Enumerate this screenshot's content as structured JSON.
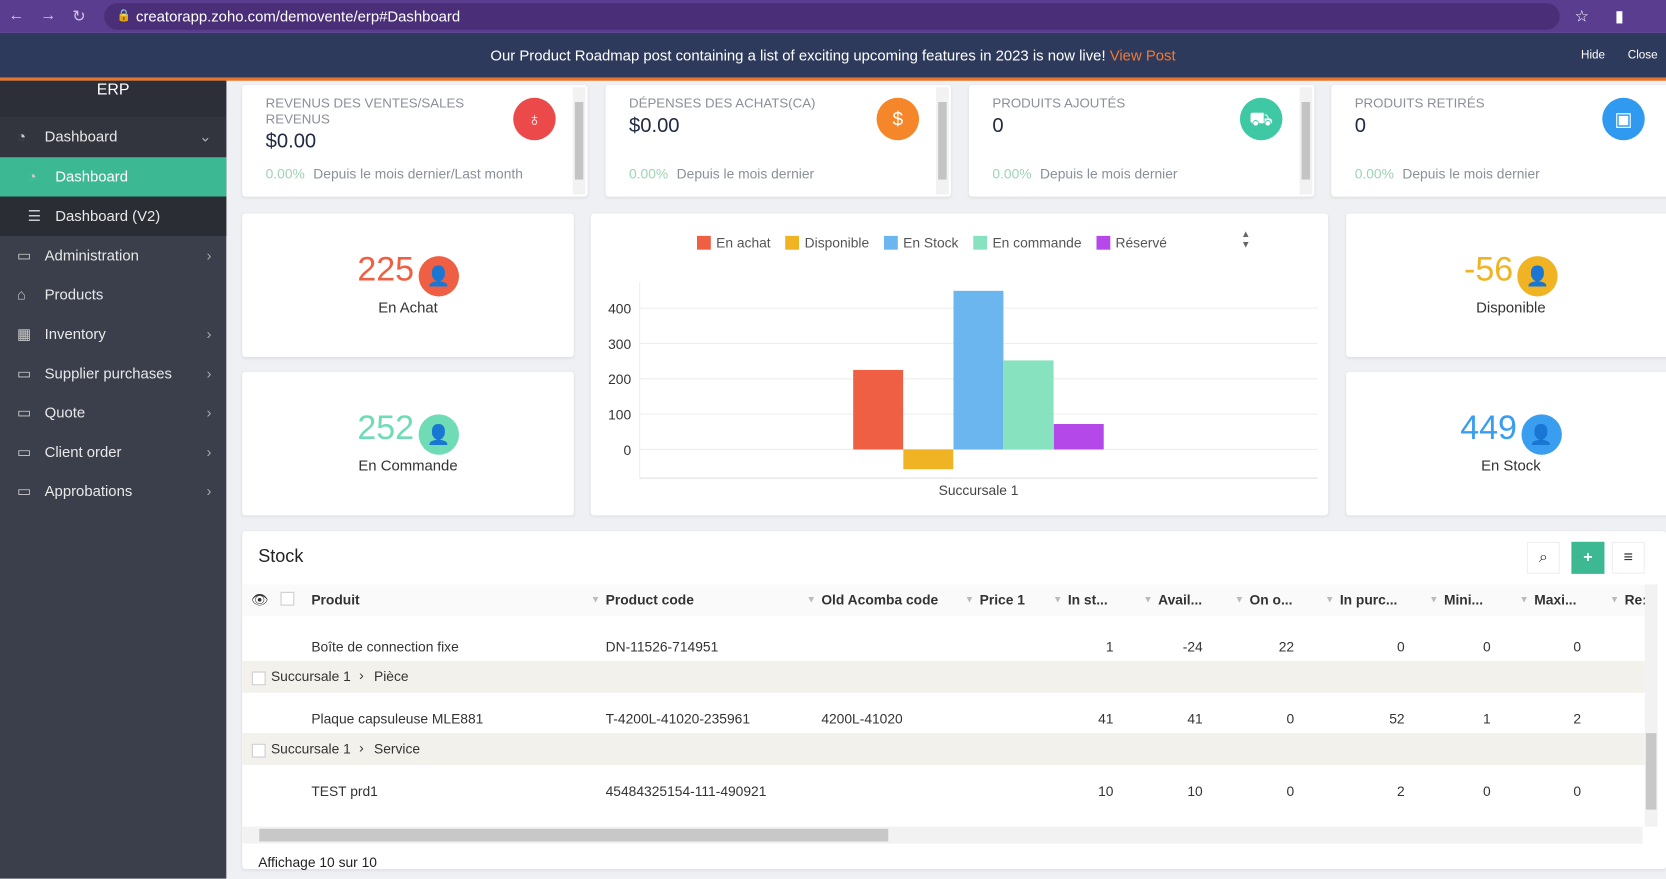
{
  "browser": {
    "url": "creatorapp.zoho.com/demovente/erp#Dashboard"
  },
  "banner": {
    "text": "Our Product Roadmap post containing a list of exciting upcoming features in 2023 is now live!",
    "link": "View Post",
    "hide": "Hide",
    "close": "Close"
  },
  "sidebar": {
    "title": "ERP",
    "items": [
      {
        "label": "Dashboard",
        "icon": "dashboard-icon"
      },
      {
        "label": "Dashboard",
        "icon": "dashboard-icon"
      },
      {
        "label": "Dashboard (V2)",
        "icon": "list-icon"
      },
      {
        "label": "Administration",
        "icon": "monitor-icon"
      },
      {
        "label": "Products",
        "icon": "gift-icon"
      },
      {
        "label": "Inventory",
        "icon": "chart-icon"
      },
      {
        "label": "Supplier purchases",
        "icon": "monitor-icon"
      },
      {
        "label": "Quote",
        "icon": "monitor-icon"
      },
      {
        "label": "Client order",
        "icon": "monitor-icon"
      },
      {
        "label": "Approbations",
        "icon": "monitor-icon"
      }
    ]
  },
  "kpis": [
    {
      "title": "Revenus des ventes/Sales revenus",
      "value": "$0.00",
      "pct": "0.00%",
      "desc": "Depuis le mois dernier/Last month",
      "color": "#ec4a4a",
      "icon": "money-bag-icon"
    },
    {
      "title": "Dépenses des achats(CA)",
      "value": "$0.00",
      "pct": "0.00%",
      "desc": "Depuis le mois dernier",
      "color": "#f6862a",
      "icon": "dollar-icon"
    },
    {
      "title": "Produits ajoutés",
      "value": "0",
      "pct": "0.00%",
      "desc": "Depuis le mois dernier",
      "color": "#3ec9a4",
      "icon": "cart-icon"
    },
    {
      "title": "Produits retirés",
      "value": "0",
      "pct": "0.00%",
      "desc": "Depuis le mois dernier",
      "color": "#2f9af0",
      "icon": "box-icon"
    }
  ],
  "stats": [
    {
      "value": "225",
      "label": "En Achat",
      "color": "#ef5f43"
    },
    {
      "value": "252",
      "label": "En Commande",
      "color": "#6fdcb5"
    },
    {
      "value": "-56",
      "label": "Disponible",
      "color": "#f0b323"
    },
    {
      "value": "449",
      "label": "En Stock",
      "color": "#3a9ef0"
    }
  ],
  "chart_data": {
    "type": "bar",
    "categories": [
      "Succursale 1"
    ],
    "xlabel": "Succursale 1",
    "ylim": [
      -60,
      450
    ],
    "yticks": [
      0,
      100,
      200,
      300,
      400
    ],
    "legend": "top",
    "series": [
      {
        "name": "En achat",
        "values": [
          225
        ],
        "color": "#ef5f43"
      },
      {
        "name": "Disponible",
        "values": [
          -56
        ],
        "color": "#f0b323"
      },
      {
        "name": "En Stock",
        "values": [
          449
        ],
        "color": "#6cb6ef"
      },
      {
        "name": "En commande",
        "values": [
          252
        ],
        "color": "#87e2c0"
      },
      {
        "name": "Réservé",
        "values": [
          72
        ],
        "color": "#b448e8"
      }
    ]
  },
  "stock": {
    "title": "Stock",
    "footer": "Affichage 10 sur 10",
    "columns": [
      "Produit",
      "Product code",
      "Old Acomba code",
      "Price 1",
      "In st...",
      "Avail...",
      "On o...",
      "In purc...",
      "Mini...",
      "Maxi...",
      "Re:"
    ],
    "rows": [
      {
        "type": "item",
        "cells": [
          "Boîte de connection fixe",
          "DN-11526-714951",
          "",
          "",
          "1",
          "-24",
          "22",
          "0",
          "0",
          "0"
        ]
      },
      {
        "type": "group",
        "a": "Succursale 1",
        "b": "Pièce"
      },
      {
        "type": "item",
        "cells": [
          "Plaque capsuleuse MLE881",
          "T-4200L-41020-235961",
          "4200L-41020",
          "",
          "41",
          "41",
          "0",
          "52",
          "1",
          "2"
        ]
      },
      {
        "type": "group",
        "a": "Succursale 1",
        "b": "Service"
      },
      {
        "type": "item",
        "cells": [
          "TEST prd1",
          "45484325154-111-490921",
          "",
          "",
          "10",
          "10",
          "0",
          "2",
          "0",
          "0"
        ]
      }
    ]
  }
}
